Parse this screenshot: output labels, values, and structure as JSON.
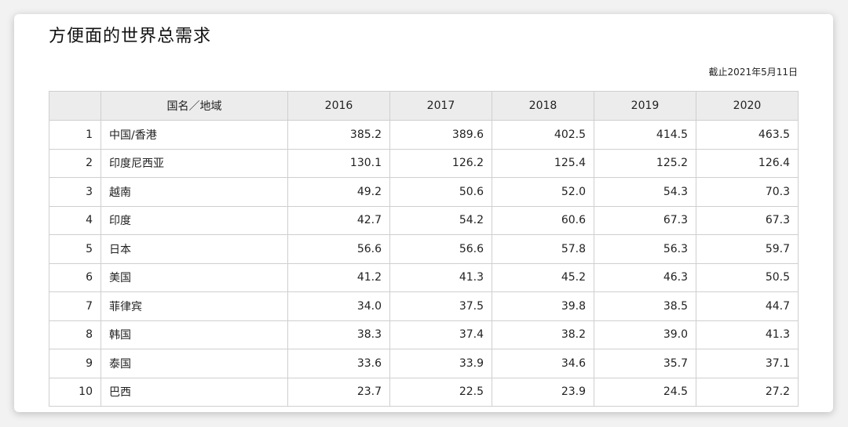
{
  "title": "方便面的世界总需求",
  "date_note": "截止2021年5月11日",
  "table": {
    "headers": [
      "",
      "国名／地域",
      "2016",
      "2017",
      "2018",
      "2019",
      "2020"
    ],
    "rows": [
      [
        "1",
        "中国/香港",
        "385.2",
        "389.6",
        "402.5",
        "414.5",
        "463.5"
      ],
      [
        "2",
        "印度尼西亚",
        "130.1",
        "126.2",
        "125.4",
        "125.2",
        "126.4"
      ],
      [
        "3",
        "越南",
        "49.2",
        "50.6",
        "52.0",
        "54.3",
        "70.3"
      ],
      [
        "4",
        "印度",
        "42.7",
        "54.2",
        "60.6",
        "67.3",
        "67.3"
      ],
      [
        "5",
        "日本",
        "56.6",
        "56.6",
        "57.8",
        "56.3",
        "59.7"
      ],
      [
        "6",
        "美国",
        "41.2",
        "41.3",
        "45.2",
        "46.3",
        "50.5"
      ],
      [
        "7",
        "菲律宾",
        "34.0",
        "37.5",
        "39.8",
        "38.5",
        "44.7"
      ],
      [
        "8",
        "韩国",
        "38.3",
        "37.4",
        "38.2",
        "39.0",
        "41.3"
      ],
      [
        "9",
        "泰国",
        "33.6",
        "33.9",
        "34.6",
        "35.7",
        "37.1"
      ],
      [
        "10",
        "巴西",
        "23.7",
        "22.5",
        "23.9",
        "24.5",
        "27.2"
      ]
    ]
  }
}
